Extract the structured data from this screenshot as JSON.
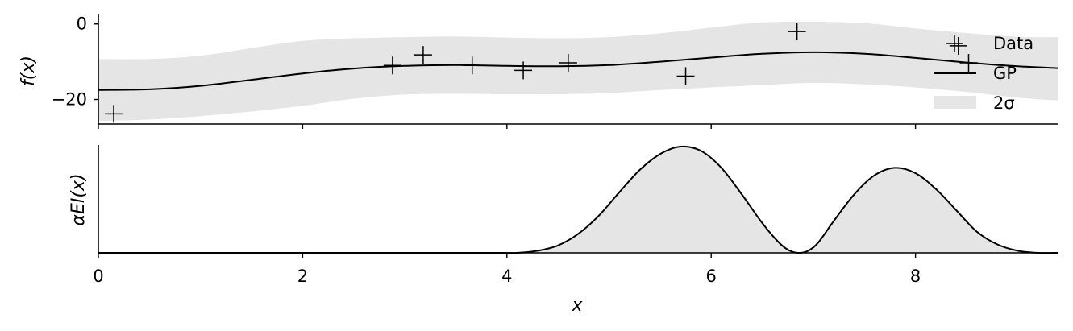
{
  "chart_data": [
    {
      "type": "line",
      "panel": "top",
      "xlabel": "",
      "ylabel": "f(x)",
      "xlim": [
        0,
        9.4
      ],
      "ylim": [
        -26.5,
        2.5
      ],
      "yticks": [
        0,
        -20
      ],
      "ytick_labels": [
        "0",
        "−20"
      ],
      "xticks": [
        0,
        2,
        4,
        6,
        8
      ],
      "legend": {
        "position": "right",
        "entries": [
          {
            "label": "Data",
            "kind": "marker"
          },
          {
            "label": "GP",
            "kind": "line"
          },
          {
            "label": "2σ",
            "kind": "patch"
          }
        ]
      },
      "series": [
        {
          "name": "Data",
          "kind": "scatter",
          "marker": "plus",
          "x": [
            0.15,
            2.88,
            3.18,
            3.66,
            4.16,
            4.6,
            5.75,
            6.84,
            8.42,
            8.52
          ],
          "y": [
            -23.8,
            -11.0,
            -8.2,
            -11.0,
            -12.3,
            -10.3,
            -13.8,
            -2.0,
            -5.8,
            -10.3
          ]
        },
        {
          "name": "GP",
          "kind": "line",
          "x": [
            0,
            0.5,
            1.0,
            1.5,
            2.0,
            2.5,
            3.0,
            3.5,
            4.0,
            4.5,
            5.0,
            5.5,
            6.0,
            6.5,
            7.0,
            7.5,
            8.0,
            8.5,
            9.0,
            9.4
          ],
          "y": [
            -17.5,
            -17.3,
            -16.4,
            -14.8,
            -13.1,
            -11.8,
            -11.1,
            -10.9,
            -11.1,
            -11.2,
            -10.9,
            -10.0,
            -8.9,
            -7.9,
            -7.5,
            -7.9,
            -9.0,
            -10.2,
            -11.2,
            -11.7
          ],
          "band_2sigma": {
            "upper": [
              -9.3,
              -9.3,
              -8.4,
              -6.4,
              -4.5,
              -3.8,
              -3.5,
              -3.3,
              -3.6,
              -3.8,
              -3.5,
              -2.5,
              -1.0,
              0.4,
              0.6,
              0.2,
              -1.2,
              -2.4,
              -3.4,
              -3.5
            ],
            "lower": [
              -25.7,
              -25.3,
              -24.4,
              -23.2,
              -21.7,
              -19.8,
              -18.7,
              -18.5,
              -18.6,
              -18.6,
              -18.3,
              -17.5,
              -16.8,
              -16.2,
              -15.6,
              -16.0,
              -16.8,
              -18.0,
              -19.5,
              -20.3
            ]
          }
        }
      ]
    },
    {
      "type": "area",
      "panel": "bottom",
      "xlabel": "x",
      "ylabel": "αEI(x)",
      "xlim": [
        0,
        9.4
      ],
      "ylim": [
        0,
        1
      ],
      "xticks": [
        0,
        2,
        4,
        6,
        8
      ],
      "xtick_labels": [
        "0",
        "2",
        "4",
        "6",
        "8"
      ],
      "series": [
        {
          "name": "",
          "x": [
            3.9,
            4.1,
            4.3,
            4.5,
            4.7,
            4.9,
            5.1,
            5.3,
            5.5,
            5.7,
            5.9,
            6.1,
            6.3,
            6.5,
            6.65,
            6.75,
            6.85,
            6.95,
            7.05,
            7.2,
            7.4,
            7.6,
            7.8,
            8.0,
            8.2,
            8.4,
            8.6,
            8.8,
            9.0,
            9.2,
            9.4
          ],
          "y": [
            0.0,
            0.0,
            0.02,
            0.07,
            0.18,
            0.35,
            0.57,
            0.78,
            0.93,
            1.0,
            0.96,
            0.8,
            0.55,
            0.28,
            0.11,
            0.03,
            0.0,
            0.02,
            0.1,
            0.3,
            0.55,
            0.73,
            0.8,
            0.75,
            0.6,
            0.4,
            0.2,
            0.08,
            0.02,
            0.0,
            0.0
          ]
        }
      ]
    }
  ]
}
